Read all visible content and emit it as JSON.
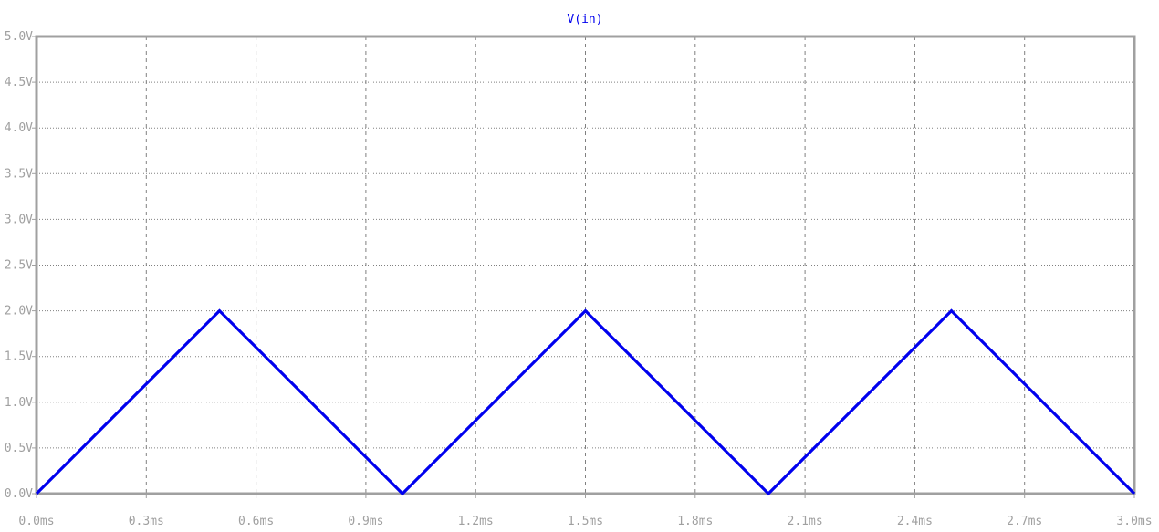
{
  "chart_data": {
    "type": "line",
    "title": "V(in)",
    "xlabel": "",
    "ylabel": "",
    "xlim": [
      0,
      3.0
    ],
    "ylim": [
      0,
      5.0
    ],
    "grid": true,
    "x_ticks": [
      "0.0ms",
      "0.3ms",
      "0.6ms",
      "0.9ms",
      "1.2ms",
      "1.5ms",
      "1.8ms",
      "2.1ms",
      "2.4ms",
      "2.7ms",
      "3.0ms"
    ],
    "x_tick_values": [
      0.0,
      0.3,
      0.6,
      0.9,
      1.2,
      1.5,
      1.8,
      2.1,
      2.4,
      2.7,
      3.0
    ],
    "y_ticks": [
      "0.0V",
      "0.5V",
      "1.0V",
      "1.5V",
      "2.0V",
      "2.5V",
      "3.0V",
      "3.5V",
      "4.0V",
      "4.5V",
      "5.0V"
    ],
    "y_tick_values": [
      0.0,
      0.5,
      1.0,
      1.5,
      2.0,
      2.5,
      3.0,
      3.5,
      4.0,
      4.5,
      5.0
    ],
    "series": [
      {
        "name": "V(in)",
        "color": "#0000ee",
        "x": [
          0.0,
          0.5,
          1.0,
          1.5,
          2.0,
          2.5,
          3.0
        ],
        "y": [
          0.0,
          2.0,
          0.0,
          2.0,
          0.0,
          2.0,
          0.0
        ]
      }
    ],
    "colors": {
      "axis": "#a0a0a0",
      "grid": "#808080",
      "trace": "#0000ee",
      "background": "#ffffff"
    }
  }
}
